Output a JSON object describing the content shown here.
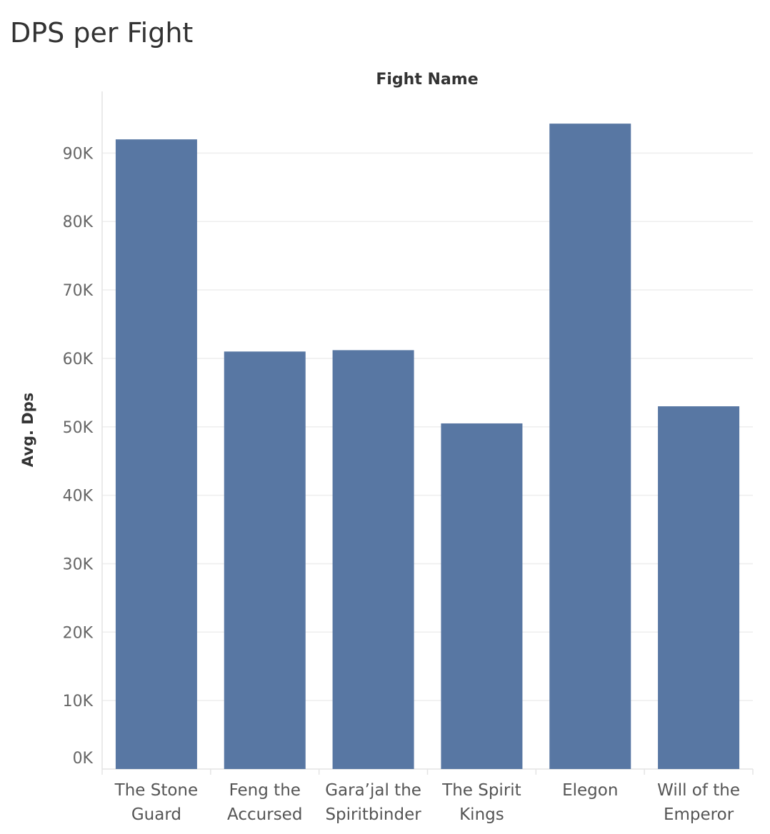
{
  "chart_data": {
    "type": "bar",
    "title": "DPS per Fight",
    "header": "Fight Name",
    "xlabel": "Fight Name",
    "ylabel": "Avg. Dps",
    "categories": [
      [
        "The Stone",
        "Guard"
      ],
      [
        "Feng the",
        "Accursed"
      ],
      [
        "Gara’jal the",
        "Spiritbinder"
      ],
      [
        "The Spirit",
        "Kings"
      ],
      [
        "Elegon"
      ],
      [
        "Will of the",
        "Emperor"
      ]
    ],
    "values": [
      92000,
      61000,
      61200,
      50500,
      94300,
      53000
    ],
    "ylim": [
      0,
      100000
    ],
    "yticks": [
      {
        "value": 0,
        "label": "0K"
      },
      {
        "value": 10000,
        "label": "10K"
      },
      {
        "value": 20000,
        "label": "20K"
      },
      {
        "value": 30000,
        "label": "30K"
      },
      {
        "value": 40000,
        "label": "40K"
      },
      {
        "value": 50000,
        "label": "50K"
      },
      {
        "value": 60000,
        "label": "60K"
      },
      {
        "value": 70000,
        "label": "70K"
      },
      {
        "value": 80000,
        "label": "80K"
      },
      {
        "value": 90000,
        "label": "90K"
      }
    ],
    "grid": true,
    "bar_color": "#5877a3"
  }
}
